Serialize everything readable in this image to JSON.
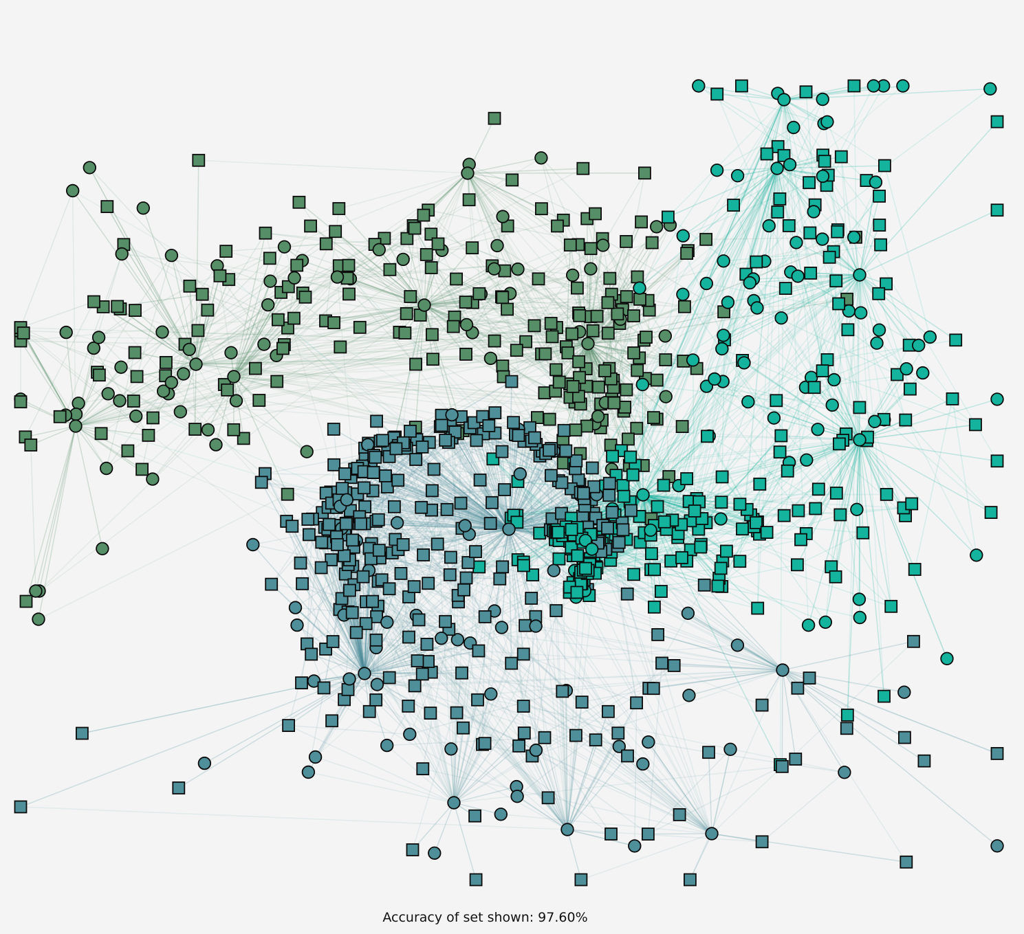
{
  "caption": "Accuracy of set shown: 97.60%",
  "classes": [
    {
      "id": "A",
      "color": "#568f67"
    },
    {
      "id": "B",
      "color": "#4f8f9a"
    },
    {
      "id": "C",
      "color": "#14b39d"
    }
  ],
  "background": "#f4f4f4"
}
